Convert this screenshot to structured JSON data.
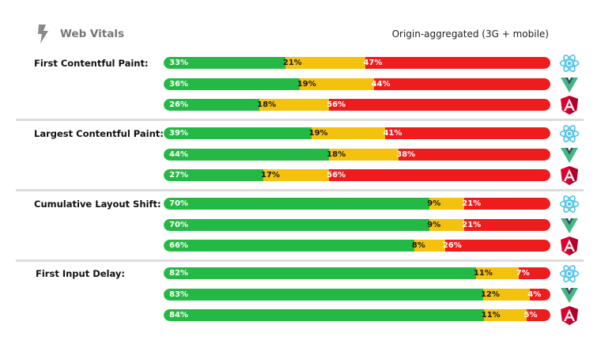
{
  "header": {
    "brand": "Web Vitals",
    "subtitle": "Origin-aggregated (3G + mobile)",
    "logo_icon": "lightning-bolt-icon"
  },
  "colors": {
    "good": "#24b944",
    "needs_improvement": "#f4c20d",
    "poor": "#ee1c1c",
    "react": "#4fc3e8",
    "vue_light": "#41b883",
    "vue_dark": "#34495e",
    "angular": "#dd0031"
  },
  "frameworks": [
    {
      "key": "react",
      "icon": "react-logo-icon"
    },
    {
      "key": "vue",
      "icon": "vue-logo-icon"
    },
    {
      "key": "angular",
      "icon": "angular-logo-icon"
    }
  ],
  "chart_data": {
    "type": "bar",
    "orientation": "horizontal",
    "stacked": true,
    "title": "",
    "series_order": [
      "good",
      "needs_improvement",
      "poor"
    ],
    "groups": [
      {
        "metric": "First Contentful Paint:",
        "rows": [
          {
            "framework": "react",
            "labels": [
              "33%",
              "21%",
              "47%"
            ],
            "values": [
              33,
              21,
              47
            ]
          },
          {
            "framework": "vue",
            "labels": [
              "36%",
              "19%",
              "44%"
            ],
            "values": [
              36,
              19,
              44
            ]
          },
          {
            "framework": "angular",
            "labels": [
              "26%",
              "18%",
              "56%"
            ],
            "values": [
              26,
              18,
              56
            ]
          }
        ]
      },
      {
        "metric": "Largest Contentful Paint:",
        "rows": [
          {
            "framework": "react",
            "labels": [
              "39%",
              "19%",
              "41%"
            ],
            "values": [
              39,
              19,
              41
            ]
          },
          {
            "framework": "vue",
            "labels": [
              "44%",
              "18%",
              "38%"
            ],
            "values": [
              44,
              18,
              38
            ]
          },
          {
            "framework": "angular",
            "labels": [
              "27%",
              "17%",
              "56%"
            ],
            "values": [
              27,
              17,
              56
            ]
          }
        ]
      },
      {
        "metric": "Cumulative Layout Shift:",
        "rows": [
          {
            "framework": "react",
            "labels": [
              "70%",
              "9%",
              "21%"
            ],
            "values": [
              70,
              9,
              21
            ]
          },
          {
            "framework": "vue",
            "labels": [
              "70%",
              "9%",
              "21%"
            ],
            "values": [
              70,
              9,
              21
            ]
          },
          {
            "framework": "angular",
            "labels": [
              "66%",
              "8%",
              "26%"
            ],
            "values": [
              66,
              8,
              26
            ]
          }
        ]
      },
      {
        "metric": "First Input Delay:",
        "rows": [
          {
            "framework": "react",
            "labels": [
              "82%",
              "11%",
              "7%"
            ],
            "values": [
              82,
              11,
              7
            ]
          },
          {
            "framework": "vue",
            "labels": [
              "83%",
              "12%",
              "4%"
            ],
            "values": [
              83,
              12,
              4
            ]
          },
          {
            "framework": "angular",
            "labels": [
              "84%",
              "11%",
              "5%"
            ],
            "values": [
              84,
              11,
              5
            ]
          }
        ]
      }
    ]
  }
}
